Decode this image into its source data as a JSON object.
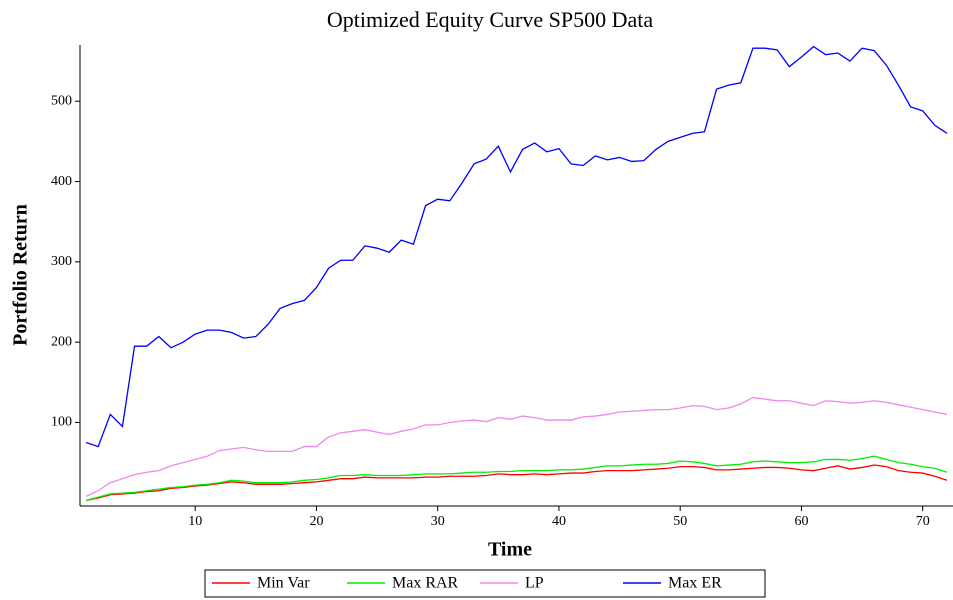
{
  "chart_data": {
    "type": "line",
    "title": "Optimized Equity Curve SP500 Data",
    "x_label": "Time",
    "y_label": "Portfolio Return",
    "x": [
      1,
      2,
      3,
      4,
      5,
      6,
      7,
      8,
      9,
      10,
      11,
      12,
      13,
      14,
      15,
      16,
      17,
      18,
      19,
      20,
      21,
      22,
      23,
      24,
      25,
      26,
      27,
      28,
      29,
      30,
      31,
      32,
      33,
      34,
      35,
      36,
      37,
      38,
      39,
      40,
      41,
      42,
      43,
      44,
      45,
      46,
      47,
      48,
      49,
      50,
      51,
      52,
      53,
      54,
      55,
      56,
      57,
      58,
      59,
      60,
      61,
      62,
      63,
      64,
      65,
      66,
      67,
      68,
      69,
      70,
      71,
      72
    ],
    "series": [
      {
        "name": "Min Var",
        "color": "#ff0000",
        "values": [
          3,
          6,
          10,
          11,
          12,
          14,
          15,
          18,
          19,
          21,
          22,
          24,
          26,
          25,
          23,
          23,
          23,
          24,
          25,
          26,
          28,
          30,
          30,
          32,
          31,
          31,
          31,
          31,
          32,
          32,
          33,
          33,
          33,
          34,
          36,
          35,
          35,
          36,
          35,
          36,
          37,
          37,
          39,
          40,
          40,
          40,
          41,
          42,
          43,
          45,
          45,
          44,
          41,
          41,
          42,
          43,
          44,
          44,
          43,
          41,
          40,
          43,
          46,
          42,
          44,
          47,
          45,
          40,
          38,
          37,
          33,
          28
        ]
      },
      {
        "name": "Max RAR",
        "color": "#00ee00",
        "values": [
          3,
          7,
          11,
          12,
          13,
          15,
          17,
          19,
          20,
          22,
          23,
          25,
          28,
          27,
          25,
          25,
          25,
          26,
          28,
          29,
          31,
          34,
          34,
          35,
          34,
          34,
          34,
          35,
          36,
          36,
          36,
          37,
          38,
          38,
          39,
          39,
          40,
          40,
          40,
          41,
          41,
          42,
          44,
          46,
          46,
          47,
          48,
          48,
          49,
          52,
          51,
          49,
          46,
          47,
          48,
          51,
          52,
          51,
          50,
          50,
          51,
          54,
          54,
          53,
          55,
          58,
          54,
          50,
          48,
          45,
          43,
          38
        ]
      },
      {
        "name": "LP",
        "color": "#ee88ee",
        "values": [
          8,
          15,
          25,
          30,
          35,
          38,
          40,
          46,
          50,
          54,
          58,
          65,
          67,
          69,
          66,
          64,
          64,
          64,
          70,
          70,
          82,
          87,
          89,
          91,
          88,
          85,
          89,
          92,
          97,
          97,
          100,
          102,
          103,
          101,
          106,
          104,
          108,
          106,
          103,
          103,
          103,
          107,
          108,
          110,
          113,
          114,
          115,
          116,
          116,
          118,
          121,
          120,
          116,
          118,
          123,
          131,
          129,
          127,
          127,
          124,
          121,
          127,
          126,
          124,
          125,
          127,
          125,
          122,
          119,
          116,
          113,
          110
        ]
      },
      {
        "name": "Max ER",
        "color": "#0000ff",
        "values": [
          75,
          70,
          110,
          95,
          195,
          195,
          207,
          193,
          200,
          210,
          215,
          215,
          212,
          205,
          207,
          222,
          242,
          248,
          252,
          268,
          292,
          302,
          302,
          320,
          317,
          312,
          327,
          322,
          370,
          378,
          376,
          398,
          422,
          428,
          444,
          412,
          440,
          448,
          437,
          441,
          422,
          420,
          432,
          427,
          430,
          425,
          426,
          440,
          450,
          455,
          460,
          462,
          515,
          520,
          523,
          566,
          566,
          564,
          543,
          555,
          568,
          558,
          560,
          550,
          566,
          563,
          545,
          520,
          493,
          488,
          470,
          460
        ]
      }
    ],
    "xlim": [
      0.5,
      72.5
    ],
    "ylim": [
      -4,
      570
    ],
    "xticks": [
      10,
      20,
      30,
      40,
      50,
      60,
      70
    ],
    "yticks": [
      100,
      200,
      300,
      400,
      500
    ]
  }
}
